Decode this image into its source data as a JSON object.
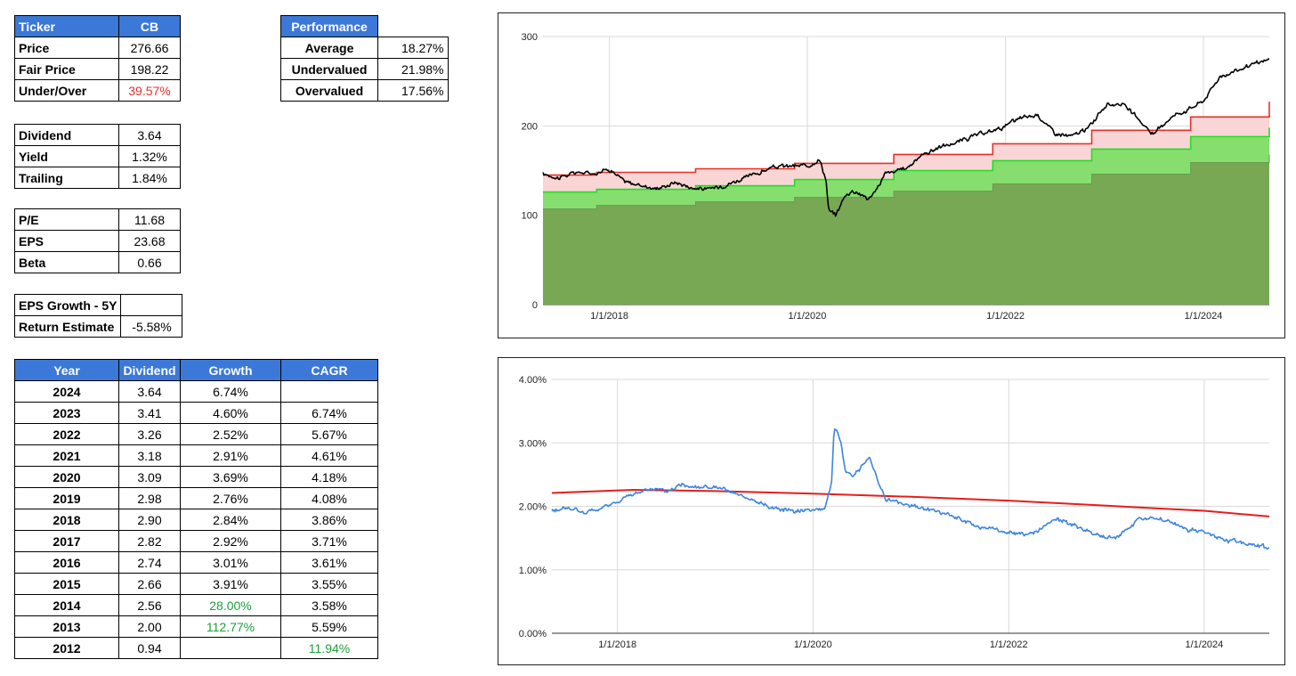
{
  "summary": {
    "header": [
      "Ticker",
      "CB"
    ],
    "rows": [
      {
        "label": "Price",
        "value": "276.66"
      },
      {
        "label": "Fair Price",
        "value": "198.22"
      },
      {
        "label": "Under/Over",
        "value": "39.57%"
      }
    ]
  },
  "performance": {
    "header": "Performance",
    "rows": [
      {
        "label": "Average",
        "value": "18.27%"
      },
      {
        "label": "Undervalued",
        "value": "21.98%"
      },
      {
        "label": "Overvalued",
        "value": "17.56%"
      }
    ]
  },
  "dividend": {
    "rows": [
      {
        "label": "Dividend",
        "value": "3.64"
      },
      {
        "label": "Yield",
        "value": "1.32%"
      },
      {
        "label": "Trailing",
        "value": "1.84%"
      }
    ]
  },
  "valuation": {
    "rows": [
      {
        "label": "P/E",
        "value": "11.68"
      },
      {
        "label": "EPS",
        "value": "23.68"
      },
      {
        "label": "Beta",
        "value": "0.66"
      }
    ]
  },
  "growth": {
    "rows": [
      {
        "label": "EPS Growth - 5Y",
        "value": ""
      },
      {
        "label": "Return Estimate",
        "value": "-5.58%"
      }
    ]
  },
  "history": {
    "headers": [
      "Year",
      "Dividend",
      "Growth",
      "CAGR"
    ],
    "rows": [
      {
        "year": "2024",
        "dividend": "3.64",
        "growth": "6.74%",
        "cagr": ""
      },
      {
        "year": "2023",
        "dividend": "3.41",
        "growth": "4.60%",
        "cagr": "6.74%"
      },
      {
        "year": "2022",
        "dividend": "3.26",
        "growth": "2.52%",
        "cagr": "5.67%"
      },
      {
        "year": "2021",
        "dividend": "3.18",
        "growth": "2.91%",
        "cagr": "4.61%"
      },
      {
        "year": "2020",
        "dividend": "3.09",
        "growth": "3.69%",
        "cagr": "4.18%"
      },
      {
        "year": "2019",
        "dividend": "2.98",
        "growth": "2.76%",
        "cagr": "4.08%"
      },
      {
        "year": "2018",
        "dividend": "2.90",
        "growth": "2.84%",
        "cagr": "3.86%"
      },
      {
        "year": "2017",
        "dividend": "2.82",
        "growth": "2.92%",
        "cagr": "3.71%"
      },
      {
        "year": "2016",
        "dividend": "2.74",
        "growth": "3.01%",
        "cagr": "3.61%"
      },
      {
        "year": "2015",
        "dividend": "2.66",
        "growth": "3.91%",
        "cagr": "3.55%"
      },
      {
        "year": "2014",
        "dividend": "2.56",
        "growth": "28.00%",
        "cagr": "3.58%"
      },
      {
        "year": "2013",
        "dividend": "2.00",
        "growth": "112.77%",
        "cagr": "5.59%"
      },
      {
        "year": "2012",
        "dividend": "0.94",
        "growth": "",
        "cagr": "11.94%"
      }
    ]
  },
  "colors": {
    "header_blue": "#3b78d8",
    "negative_red": "#e8302a",
    "positive_green": "#1e9e3a",
    "price_line": "#000000",
    "overvalued_line": "#e8302a",
    "fair_line": "#22dd22",
    "yield_line": "#3c84e0",
    "avg_yield_line": "#e81c1c"
  },
  "chart_data": [
    {
      "type": "area",
      "x_range": [
        "2017-05-01",
        "2024-08-31"
      ],
      "ylim": [
        0,
        300
      ],
      "yticks": [
        "0",
        "100",
        "200",
        "300"
      ],
      "xticks": [
        "1/1/2018",
        "1/1/2020",
        "1/1/2022",
        "1/1/2024"
      ],
      "grid": true,
      "legend": "none",
      "series": [
        {
          "key": "undervalued_band",
          "x": [
            "2017-05-01",
            "2017-11-15",
            "2018-11-15",
            "2019-11-15",
            "2020-11-15",
            "2021-11-15",
            "2022-11-15",
            "2023-11-15",
            "2024-08-31"
          ],
          "values": [
            107,
            111,
            115,
            120,
            127,
            135,
            146,
            159,
            168
          ]
        },
        {
          "key": "fair_value",
          "x": [
            "2017-05-01",
            "2017-11-15",
            "2018-11-15",
            "2019-11-15",
            "2020-11-15",
            "2021-11-15",
            "2022-11-15",
            "2023-11-15",
            "2024-08-31"
          ],
          "values": [
            126,
            129,
            133,
            140,
            150,
            161,
            174,
            188,
            198
          ]
        },
        {
          "key": "overvalued",
          "x": [
            "2017-05-01",
            "2017-11-15",
            "2018-11-15",
            "2019-11-15",
            "2020-11-15",
            "2021-11-15",
            "2022-11-15",
            "2023-11-15",
            "2024-08-31"
          ],
          "values": [
            145,
            148,
            152,
            158,
            168,
            180,
            195,
            210,
            227
          ]
        },
        {
          "key": "price",
          "x": [
            "2017-05-01",
            "2017-07-01",
            "2017-09-01",
            "2017-11-01",
            "2018-01-01",
            "2018-03-01",
            "2018-05-01",
            "2018-07-01",
            "2018-09-01",
            "2018-11-01",
            "2019-01-01",
            "2019-03-01",
            "2019-05-01",
            "2019-07-01",
            "2019-09-01",
            "2019-11-01",
            "2020-01-01",
            "2020-02-15",
            "2020-03-10",
            "2020-03-20",
            "2020-04-15",
            "2020-05-15",
            "2020-06-15",
            "2020-07-15",
            "2020-08-15",
            "2020-09-15",
            "2020-10-15",
            "2020-11-15",
            "2021-01-01",
            "2021-03-01",
            "2021-05-01",
            "2021-07-01",
            "2021-09-01",
            "2021-11-01",
            "2022-01-01",
            "2022-03-01",
            "2022-05-01",
            "2022-07-01",
            "2022-09-01",
            "2022-11-01",
            "2023-01-01",
            "2023-03-01",
            "2023-05-01",
            "2023-07-01",
            "2023-09-01",
            "2023-11-01",
            "2024-01-01",
            "2024-03-01",
            "2024-05-01",
            "2024-07-01",
            "2024-08-31"
          ],
          "values": [
            146,
            142,
            148,
            147,
            152,
            137,
            133,
            130,
            137,
            131,
            129,
            134,
            140,
            147,
            154,
            155,
            155,
            163,
            140,
            105,
            100,
            120,
            128,
            124,
            118,
            130,
            147,
            148,
            153,
            168,
            176,
            181,
            188,
            193,
            200,
            209,
            212,
            192,
            188,
            197,
            222,
            226,
            209,
            190,
            210,
            218,
            228,
            255,
            262,
            268,
            274
          ]
        }
      ]
    },
    {
      "type": "line",
      "x_range": [
        "2017-05-01",
        "2024-08-31"
      ],
      "ylim": [
        0,
        0.04
      ],
      "yticks": [
        "0.00%",
        "1.00%",
        "2.00%",
        "3.00%",
        "4.00%"
      ],
      "xticks": [
        "1/1/2018",
        "1/1/2020",
        "1/1/2022",
        "1/1/2024"
      ],
      "grid": true,
      "legend": "none",
      "series": [
        {
          "key": "dividend_yield",
          "x": [
            "2017-05-01",
            "2017-07-01",
            "2017-09-01",
            "2017-11-01",
            "2018-01-01",
            "2018-03-01",
            "2018-05-01",
            "2018-07-01",
            "2018-09-01",
            "2018-11-01",
            "2019-01-01",
            "2019-03-01",
            "2019-05-01",
            "2019-07-01",
            "2019-09-01",
            "2019-11-01",
            "2020-01-01",
            "2020-02-15",
            "2020-03-10",
            "2020-03-20",
            "2020-04-01",
            "2020-04-15",
            "2020-05-01",
            "2020-06-01",
            "2020-07-01",
            "2020-08-01",
            "2020-09-01",
            "2020-10-01",
            "2020-11-01",
            "2021-01-01",
            "2021-03-01",
            "2021-05-01",
            "2021-07-01",
            "2021-09-01",
            "2021-11-01",
            "2022-01-01",
            "2022-03-01",
            "2022-05-01",
            "2022-07-01",
            "2022-09-01",
            "2022-11-01",
            "2023-01-01",
            "2023-03-01",
            "2023-05-01",
            "2023-07-01",
            "2023-09-01",
            "2023-11-01",
            "2024-01-01",
            "2024-03-01",
            "2024-05-01",
            "2024-07-01",
            "2024-08-31"
          ],
          "values": [
            0.0193,
            0.0198,
            0.0189,
            0.0196,
            0.0208,
            0.0218,
            0.0229,
            0.0222,
            0.0235,
            0.0231,
            0.0229,
            0.0222,
            0.0211,
            0.0203,
            0.0195,
            0.0194,
            0.0195,
            0.0198,
            0.0235,
            0.0325,
            0.0315,
            0.03,
            0.0254,
            0.025,
            0.0263,
            0.0275,
            0.024,
            0.021,
            0.0208,
            0.02,
            0.0197,
            0.0189,
            0.018,
            0.0168,
            0.0164,
            0.0158,
            0.0156,
            0.0163,
            0.018,
            0.017,
            0.016,
            0.015,
            0.0157,
            0.018,
            0.0181,
            0.0175,
            0.0163,
            0.016,
            0.0148,
            0.0145,
            0.014,
            0.0134
          ]
        },
        {
          "key": "average_yield",
          "x": [
            "2017-05-01",
            "2018-03-01",
            "2019-01-01",
            "2020-01-01",
            "2021-01-01",
            "2022-01-01",
            "2023-01-01",
            "2024-01-01",
            "2024-08-31"
          ],
          "values": [
            0.0221,
            0.0226,
            0.0224,
            0.022,
            0.0215,
            0.0209,
            0.0201,
            0.0193,
            0.0184
          ]
        }
      ]
    }
  ]
}
